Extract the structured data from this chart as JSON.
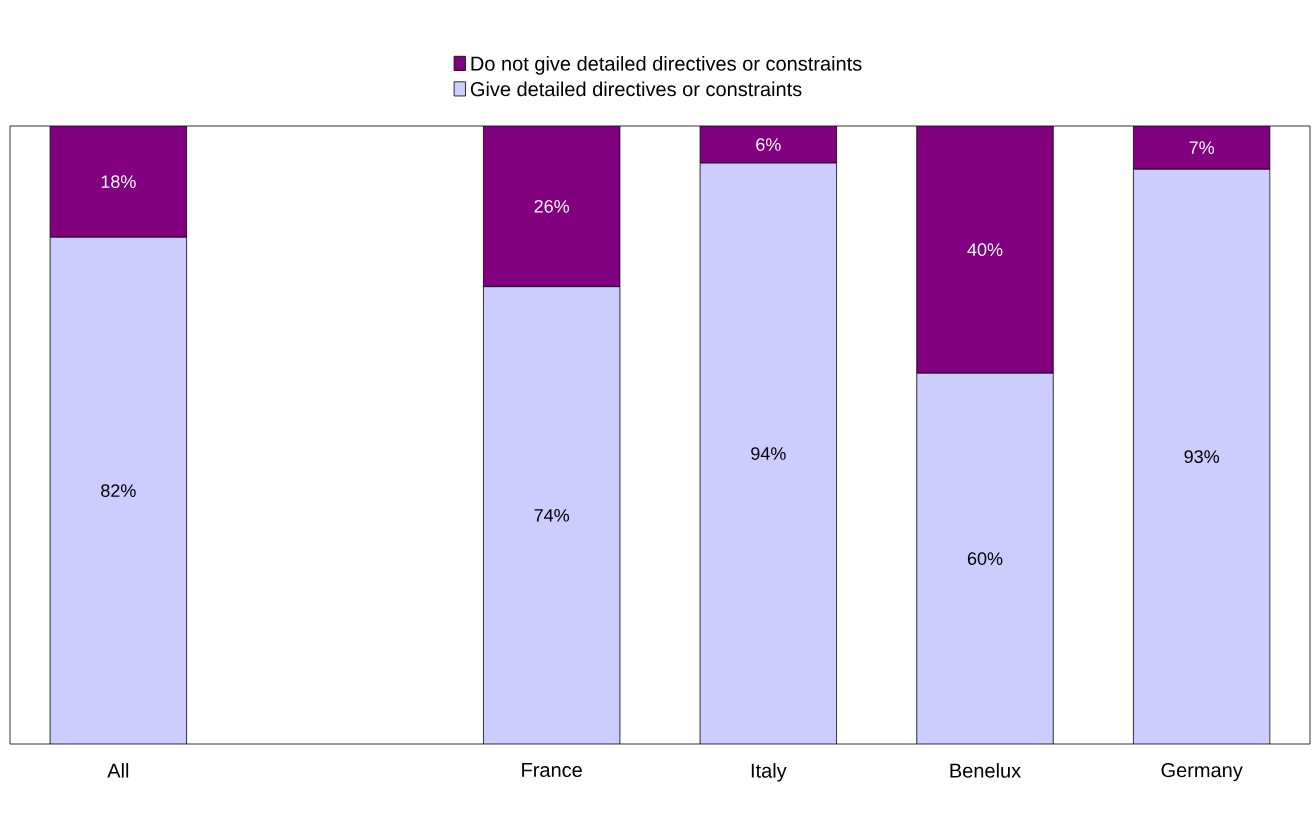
{
  "chart_data": {
    "type": "bar",
    "stacked": true,
    "categories": [
      "All",
      null,
      "France",
      "Italy",
      "Benelux",
      "Germany"
    ],
    "series": [
      {
        "name": "Give detailed directives or constraints",
        "color": "#ccccff",
        "values": [
          82,
          null,
          74,
          94,
          60,
          93
        ],
        "value_labels": [
          "82%",
          null,
          "74%",
          "94%",
          "60%",
          "93%"
        ]
      },
      {
        "name": "Do not give detailed directives or constraints",
        "color": "#800080",
        "values": [
          18,
          null,
          26,
          6,
          40,
          7
        ],
        "value_labels": [
          "18%",
          null,
          "26%",
          "6%",
          "40%",
          "7%"
        ]
      }
    ],
    "ylim": [
      0,
      100
    ],
    "legend": "top"
  }
}
